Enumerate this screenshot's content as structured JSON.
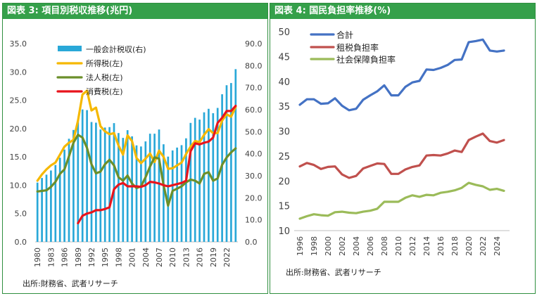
{
  "left": {
    "header": "図表 3: 項目別税収推移(兆円)",
    "source": "出所:財務省、武者リサーチ",
    "legend": [
      "一般会計税収(右)",
      "所得税(左)",
      "法人税(左)",
      "消費税(左)"
    ]
  },
  "right": {
    "header": "図表 4: 国民負担率推移(%)",
    "source": "出所:財務省、武者リサーチ",
    "legend": [
      "合計",
      "租税負担率",
      "社会保障負担率"
    ]
  },
  "chart_data": [
    {
      "type": "bar+line",
      "title": "図表 3: 項目別税収推移(兆円)",
      "categories": [
        "1980",
        "1981",
        "1982",
        "1983",
        "1984",
        "1985",
        "1986",
        "1987",
        "1988",
        "1989",
        "1990",
        "1991",
        "1992",
        "1993",
        "1994",
        "1995",
        "1996",
        "1997",
        "1998",
        "1999",
        "2000",
        "2001",
        "2002",
        "2003",
        "2004",
        "2005",
        "2006",
        "2007",
        "2008",
        "2009",
        "2010",
        "2011",
        "2012",
        "2013",
        "2014",
        "2015",
        "2016",
        "2017",
        "2018",
        "2019",
        "2020",
        "2021",
        "2022",
        "2023",
        "2024"
      ],
      "x_tick_labels": [
        "1980",
        "1983",
        "1986",
        "1989",
        "1992",
        "1995",
        "1998",
        "2001",
        "2004",
        "2007",
        "2010",
        "2013",
        "2016",
        "2019",
        "2022"
      ],
      "ylim_left": [
        0,
        35
      ],
      "yticks_left": [
        "0.0",
        "5.0",
        "10.0",
        "15.0",
        "20.0",
        "25.0",
        "30.0",
        "35.0"
      ],
      "ylim_right": [
        0,
        90
      ],
      "yticks_right": [
        "0.0",
        "10.0",
        "20.0",
        "30.0",
        "40.0",
        "50.0",
        "60.0",
        "70.0",
        "80.0",
        "90.0"
      ],
      "grid": false,
      "legend_position": "top-center",
      "series": [
        {
          "name": "一般会計税収(右)",
          "axis": "right",
          "kind": "bar",
          "color": "#29a8d8",
          "values": [
            26.9,
            29.0,
            30.5,
            32.4,
            34.9,
            38.2,
            41.9,
            46.8,
            50.8,
            54.9,
            60.1,
            59.8,
            54.4,
            54.1,
            51.0,
            51.9,
            52.1,
            53.9,
            49.4,
            47.2,
            50.7,
            47.9,
            43.8,
            43.3,
            45.6,
            49.1,
            49.1,
            51.0,
            44.3,
            38.7,
            41.5,
            42.8,
            43.9,
            47.0,
            54.0,
            56.3,
            55.5,
            58.8,
            60.4,
            58.4,
            60.8,
            67.0,
            71.1,
            72.1,
            78.4
          ]
        },
        {
          "name": "所得税(左)",
          "axis": "left",
          "kind": "line",
          "color": "#f5b800",
          "values": [
            10.8,
            11.9,
            12.8,
            13.5,
            14.0,
            15.4,
            16.8,
            17.5,
            18.0,
            21.4,
            26.0,
            26.7,
            23.2,
            23.7,
            20.4,
            19.5,
            19.0,
            19.2,
            17.0,
            15.4,
            18.8,
            17.8,
            14.8,
            13.9,
            14.7,
            15.6,
            14.1,
            16.1,
            15.0,
            12.9,
            13.0,
            13.5,
            14.0,
            15.5,
            16.8,
            17.8,
            17.6,
            18.9,
            19.9,
            19.2,
            19.2,
            21.4,
            22.5,
            22.1,
            23.8
          ]
        },
        {
          "name": "法人税(左)",
          "axis": "left",
          "kind": "line",
          "color": "#6b8f2a",
          "values": [
            8.9,
            9.0,
            9.1,
            9.7,
            10.6,
            12.0,
            12.8,
            15.1,
            17.5,
            18.9,
            18.4,
            16.6,
            13.7,
            12.1,
            12.4,
            13.7,
            14.5,
            13.5,
            11.4,
            10.8,
            11.7,
            10.3,
            9.5,
            9.8,
            11.4,
            13.3,
            14.9,
            14.7,
            10.0,
            6.4,
            9.0,
            9.4,
            9.8,
            10.5,
            11.0,
            10.8,
            10.3,
            12.0,
            12.3,
            10.8,
            11.2,
            13.6,
            14.9,
            15.8,
            16.5
          ]
        },
        {
          "name": "消費税(左)",
          "axis": "left",
          "kind": "line",
          "color": "#e8141c",
          "values": [
            null,
            null,
            null,
            null,
            null,
            null,
            null,
            null,
            null,
            3.3,
            4.6,
            5.0,
            5.2,
            5.6,
            5.6,
            5.8,
            6.1,
            9.3,
            10.1,
            10.4,
            9.8,
            9.8,
            9.8,
            9.7,
            10.0,
            10.6,
            10.5,
            10.3,
            10.0,
            9.8,
            10.0,
            10.2,
            10.4,
            10.8,
            16.0,
            17.4,
            17.2,
            17.5,
            17.7,
            18.4,
            21.0,
            21.9,
            23.1,
            23.1,
            24.0
          ]
        }
      ]
    },
    {
      "type": "line",
      "title": "図表 4: 国民負担率推移(%)",
      "x_tick_labels": [
        "1996",
        "1998",
        "2000",
        "2002",
        "2004",
        "2006",
        "2008",
        "2010",
        "2012",
        "2014",
        "2016",
        "2018",
        "2020",
        "2022",
        "2024"
      ],
      "x": [
        1996,
        1997,
        1998,
        1999,
        2000,
        2001,
        2002,
        2003,
        2004,
        2005,
        2006,
        2007,
        2008,
        2009,
        2010,
        2011,
        2012,
        2013,
        2014,
        2015,
        2016,
        2017,
        2018,
        2019,
        2020,
        2021,
        2022,
        2023,
        2024,
        2025
      ],
      "ylim": [
        10,
        50
      ],
      "yticks": [
        "10",
        "15",
        "20",
        "25",
        "30",
        "35",
        "40",
        "45",
        "50"
      ],
      "grid": false,
      "legend_position": "top-left",
      "series": [
        {
          "name": "合計",
          "color": "#4472c4",
          "values": [
            35.3,
            36.4,
            36.4,
            35.5,
            35.6,
            36.6,
            35.1,
            34.2,
            34.5,
            36.3,
            37.2,
            38.0,
            39.2,
            37.2,
            37.2,
            38.9,
            39.8,
            40.1,
            42.4,
            42.3,
            42.7,
            43.3,
            44.3,
            44.4,
            47.9,
            48.1,
            48.4,
            46.2,
            46.0,
            46.2
          ]
        },
        {
          "name": "租税負担率",
          "color": "#c0504d",
          "values": [
            22.9,
            23.6,
            23.2,
            22.4,
            22.8,
            22.9,
            21.3,
            20.6,
            21.0,
            22.5,
            23.0,
            23.5,
            23.4,
            21.4,
            21.4,
            22.3,
            22.8,
            23.1,
            25.1,
            25.2,
            25.1,
            25.5,
            26.1,
            25.8,
            28.2,
            28.9,
            29.5,
            28.0,
            27.7,
            28.2
          ]
        },
        {
          "name": "社会保障負担率",
          "color": "#9bbb59",
          "values": [
            12.4,
            12.9,
            13.3,
            13.1,
            13.0,
            13.7,
            13.8,
            13.6,
            13.5,
            13.8,
            14.0,
            14.4,
            15.8,
            15.8,
            15.8,
            16.6,
            17.1,
            16.8,
            17.2,
            17.1,
            17.6,
            17.8,
            18.1,
            18.6,
            19.6,
            19.2,
            18.9,
            18.2,
            18.4,
            18.0
          ]
        }
      ]
    }
  ]
}
